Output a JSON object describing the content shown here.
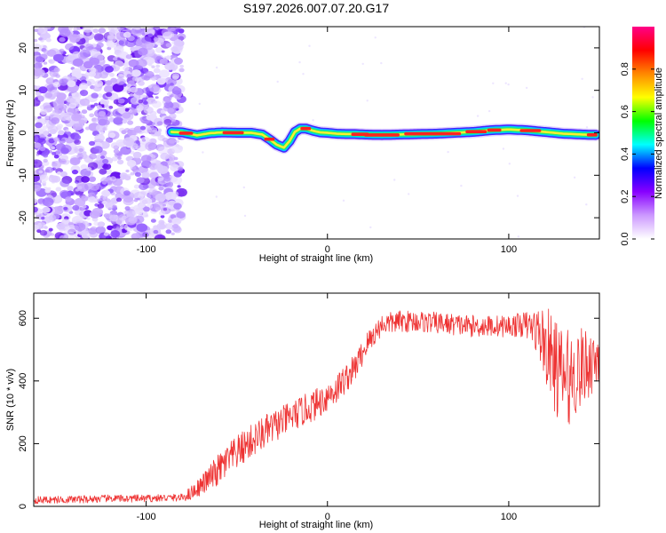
{
  "title": "S197.2026.007.07.20.G17",
  "chart_data": [
    {
      "type": "heatmap",
      "xlabel": "Height of straight line (km)",
      "ylabel": "Frequency (Hz)",
      "xlim": [
        -162,
        150
      ],
      "ylim": [
        -25,
        25
      ],
      "xticks": [
        -100,
        0,
        100
      ],
      "xtick_labels": [
        "-100",
        "0",
        "100"
      ],
      "yticks": [
        -20,
        -10,
        0,
        10,
        20
      ],
      "ytick_labels": [
        "-20",
        "-10",
        "0",
        "10",
        "20"
      ],
      "noise_region": {
        "x_from": -162,
        "x_to": -86
      },
      "signal_track": {
        "x": [
          -86,
          -80,
          -72,
          -65,
          -58,
          -50,
          -42,
          -36,
          -32,
          -28,
          -24,
          -21,
          -18,
          -15,
          -12,
          -8,
          -4,
          0,
          5,
          10,
          15,
          20,
          30,
          40,
          50,
          60,
          70,
          80,
          90,
          100,
          110,
          120,
          130,
          140,
          148
        ],
        "freq": [
          0.2,
          0.1,
          -0.6,
          -0.1,
          0.1,
          0.0,
          0.0,
          -0.4,
          -1.5,
          -2.8,
          -3.5,
          -2.0,
          0.2,
          1.0,
          1.0,
          0.5,
          0.1,
          0.0,
          -0.2,
          -0.3,
          -0.3,
          -0.4,
          -0.5,
          -0.4,
          -0.3,
          -0.2,
          0.0,
          0.2,
          0.6,
          0.8,
          0.6,
          0.2,
          -0.2,
          -0.4,
          -0.5
        ]
      },
      "colorbar": {
        "label": "Normalized spectral amplitude",
        "range": [
          0.0,
          1.0
        ],
        "ticks": [
          0.0,
          0.2,
          0.4,
          0.6,
          0.8
        ],
        "tick_labels": [
          "0.0",
          "0.2",
          "0.4",
          "0.6",
          "0.8"
        ],
        "colors": [
          "#ffffff",
          "#cc99ff",
          "#8800ff",
          "#0000ff",
          "#00ffff",
          "#00ff00",
          "#ffff00",
          "#ff8800",
          "#ff0000",
          "#ff0088"
        ]
      }
    },
    {
      "type": "line",
      "xlabel": "Height of straight line (km)",
      "ylabel": "SNR (10 * v/v)",
      "xlim": [
        -162,
        150
      ],
      "ylim": [
        0,
        680
      ],
      "xticks": [
        -100,
        0,
        100
      ],
      "xtick_labels": [
        "-100",
        "0",
        "100"
      ],
      "yticks": [
        0,
        200,
        400,
        600
      ],
      "ytick_labels": [
        "0",
        "200",
        "400",
        "600"
      ],
      "line_color": "#ee3333",
      "series": [
        {
          "name": "SNR",
          "x": [
            -162,
            -140,
            -120,
            -100,
            -90,
            -80,
            -76,
            -70,
            -62,
            -55,
            -45,
            -35,
            -25,
            -15,
            -5,
            5,
            15,
            22,
            30,
            40,
            50,
            60,
            70,
            80,
            90,
            100,
            108,
            114,
            118,
            122,
            128,
            134,
            140,
            145,
            150
          ],
          "y": [
            20,
            22,
            25,
            25,
            27,
            28,
            40,
            65,
            105,
            145,
            195,
            235,
            270,
            300,
            330,
            375,
            440,
            520,
            580,
            590,
            590,
            585,
            580,
            575,
            575,
            575,
            580,
            570,
            540,
            490,
            420,
            410,
            440,
            460,
            480
          ],
          "amplitude": [
            12,
            12,
            12,
            12,
            12,
            12,
            22,
            30,
            50,
            55,
            55,
            55,
            50,
            50,
            50,
            50,
            45,
            40,
            35,
            35,
            35,
            35,
            35,
            35,
            35,
            35,
            40,
            60,
            100,
            140,
            160,
            150,
            130,
            110,
            100
          ]
        }
      ]
    }
  ]
}
